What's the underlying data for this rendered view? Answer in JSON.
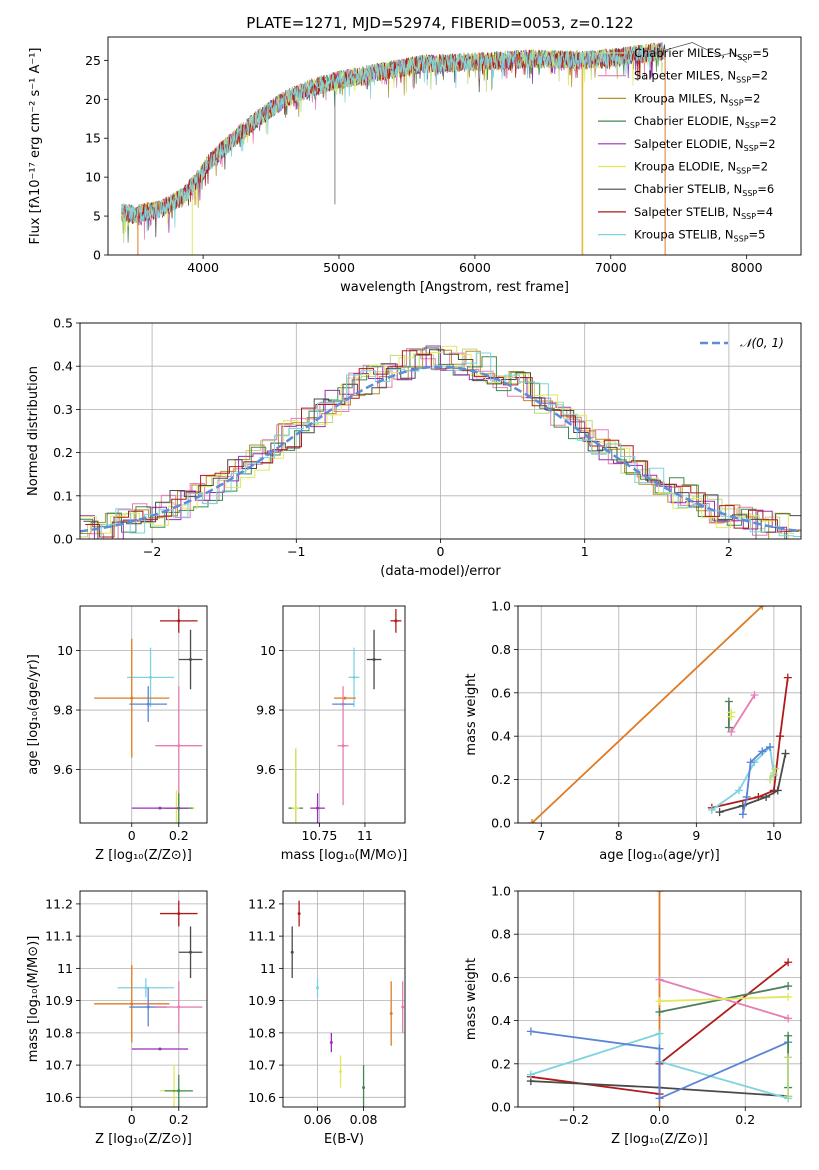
{
  "title": "PLATE=1271, MJD=52974, FIBERID=0053, z=0.122",
  "colors": {
    "Chabrier MILES": "#bcd982",
    "Salpeter MILES": "#e67eb4",
    "Kroupa MILES": "#b8902c",
    "Chabrier ELODIE": "#3f8a4c",
    "Salpeter ELODIE": "#9a2fb8",
    "Kroupa ELODIE": "#e3e85a",
    "Chabrier STELIB": "#4a4a4a",
    "Salpeter STELIB": "#b01a1a",
    "Kroupa STELIB": "#7dd3e0",
    "extra_orange": "#e07b24",
    "extra_blue": "#5b84d6",
    "dark_green": "#4f7f5a",
    "normal": "#5b8dd9"
  },
  "chart_data": [
    {
      "id": "spectrum",
      "type": "line",
      "xlabel": "wavelength [Angstrom, rest frame]",
      "ylabel": "Flux [fλ10⁻¹⁷ erg cm⁻² s⁻¹ A⁻¹]",
      "xlim": [
        3300,
        8400
      ],
      "ylim": [
        0,
        28
      ],
      "xticks": [
        4000,
        5000,
        6000,
        7000,
        8000
      ],
      "yticks": [
        0,
        5,
        10,
        15,
        20,
        25
      ],
      "legend": "right",
      "legend_entries": [
        {
          "name": "Chabrier MILES, N",
          "sub": "SSP",
          "tail": "=5"
        },
        {
          "name": "Salpeter MILES, N",
          "sub": "SSP",
          "tail": "=2"
        },
        {
          "name": "Kroupa MILES, N",
          "sub": "SSP",
          "tail": "=2"
        },
        {
          "name": "Chabrier ELODIE, N",
          "sub": "SSP",
          "tail": "=2"
        },
        {
          "name": "Salpeter ELODIE, N",
          "sub": "SSP",
          "tail": "=2"
        },
        {
          "name": "Kroupa ELODIE, N",
          "sub": "SSP",
          "tail": "=2"
        },
        {
          "name": "Chabrier STELIB, N",
          "sub": "SSP",
          "tail": "=6"
        },
        {
          "name": "Salpeter STELIB, N",
          "sub": "SSP",
          "tail": "=4"
        },
        {
          "name": "Kroupa STELIB, N",
          "sub": "SSP",
          "tail": "=5"
        }
      ],
      "continuum": [
        [
          3400,
          5.5
        ],
        [
          3500,
          5.2
        ],
        [
          3700,
          6
        ],
        [
          3850,
          7.5
        ],
        [
          3950,
          9.5
        ],
        [
          4050,
          12
        ],
        [
          4200,
          14.5
        ],
        [
          4400,
          17.5
        ],
        [
          4600,
          20
        ],
        [
          4800,
          21.5
        ],
        [
          5000,
          22.5
        ],
        [
          5300,
          23.5
        ],
        [
          5600,
          24.5
        ],
        [
          6000,
          24.8
        ],
        [
          6400,
          25.2
        ],
        [
          6800,
          25
        ],
        [
          7000,
          25.3
        ],
        [
          7200,
          25.8
        ],
        [
          7400,
          26.2
        ]
      ],
      "tail_stelib": [
        [
          7400,
          26.2
        ],
        [
          7600,
          26.8
        ],
        [
          7800,
          26
        ],
        [
          7900,
          25.5
        ],
        [
          8000,
          25
        ]
      ]
    },
    {
      "id": "residuals",
      "type": "histogram",
      "xlabel": "(data-model)/error",
      "ylabel": "Normed distribution",
      "xlim": [
        -2.5,
        2.5
      ],
      "ylim": [
        0,
        0.5
      ],
      "xticks": [
        -2,
        -1,
        0,
        1,
        2
      ],
      "xtick_labels": [
        "−2",
        "−1",
        "0",
        "1",
        "2"
      ],
      "yticks": [
        0,
        0.1,
        0.2,
        0.3,
        0.4,
        0.5
      ],
      "ytick_labels": [
        "0.0",
        "0.1",
        "0.2",
        "0.3",
        "0.4",
        "0.5"
      ],
      "bin_width": 0.1,
      "legend_label": "𝒩(0, 1)",
      "legend": "top-right"
    },
    {
      "id": "age_vs_Z",
      "type": "scatter",
      "xlabel": "Z [log₁₀(Z/Z⊙)]",
      "ylabel": "age  [log₁₀(age/yr)]",
      "xlim": [
        -0.22,
        0.32
      ],
      "ylim": [
        9.42,
        10.15
      ],
      "xticks": [
        0.0,
        0.2
      ],
      "yticks": [
        9.6,
        9.8,
        10.0
      ],
      "points": [
        {
          "c": "Salpeter STELIB",
          "x": 0.2,
          "y": 10.1,
          "xe": 0.08,
          "ye": 0.04
        },
        {
          "c": "Chabrier STELIB",
          "x": 0.25,
          "y": 9.97,
          "xe": 0.05,
          "ye": 0.1
        },
        {
          "c": "Kroupa STELIB",
          "x": 0.08,
          "y": 9.91,
          "xe": 0.1,
          "ye": 0.1
        },
        {
          "c": "extra_orange",
          "x": 0.0,
          "y": 9.84,
          "xe": 0.16,
          "ye": 0.2
        },
        {
          "c": "extra_blue",
          "x": 0.07,
          "y": 9.82,
          "xe": 0.08,
          "ye": 0.06
        },
        {
          "c": "Salpeter MILES",
          "x": 0.2,
          "y": 9.68,
          "xe": 0.1,
          "ye": 0.2
        },
        {
          "c": "Kroupa ELODIE",
          "x": 0.19,
          "y": 9.47,
          "xe": 0.08,
          "ye": 0.06
        },
        {
          "c": "Chabrier ELODIE",
          "x": 0.2,
          "y": 9.47,
          "xe": 0.06,
          "ye": 0.05
        },
        {
          "c": "Salpeter ELODIE",
          "x": 0.12,
          "y": 9.47,
          "xe": 0.12,
          "ye": 0.0
        }
      ]
    },
    {
      "id": "age_vs_mass",
      "type": "scatter",
      "xlabel": "mass [log₁₀(M/M⊙)]",
      "ylabel": "",
      "xlim": [
        10.55,
        11.22
      ],
      "ylim": [
        9.42,
        10.15
      ],
      "xticks": [
        10.75,
        11.0
      ],
      "yticks": [
        9.6,
        9.8,
        10.0
      ],
      "points": [
        {
          "c": "Salpeter STELIB",
          "x": 11.17,
          "y": 10.1,
          "xe": 0.03,
          "ye": 0.04
        },
        {
          "c": "Chabrier STELIB",
          "x": 11.05,
          "y": 9.97,
          "xe": 0.04,
          "ye": 0.1
        },
        {
          "c": "Kroupa STELIB",
          "x": 10.94,
          "y": 9.91,
          "xe": 0.03,
          "ye": 0.1
        },
        {
          "c": "extra_orange",
          "x": 10.89,
          "y": 9.84,
          "xe": 0.06,
          "ye": 0.0
        },
        {
          "c": "extra_blue",
          "x": 10.88,
          "y": 9.82,
          "xe": 0.06,
          "ye": 0.0
        },
        {
          "c": "Salpeter MILES",
          "x": 10.88,
          "y": 9.68,
          "xe": 0.03,
          "ye": 0.2
        },
        {
          "c": "Chabrier ELODIE",
          "x": 10.62,
          "y": 9.47,
          "xe": 0.04,
          "ye": 0.2
        },
        {
          "c": "Kroupa ELODIE",
          "x": 10.62,
          "y": 9.47,
          "xe": 0.02,
          "ye": 0.2
        },
        {
          "c": "Salpeter ELODIE",
          "x": 10.74,
          "y": 9.47,
          "xe": 0.04,
          "ye": 0.05
        }
      ]
    },
    {
      "id": "massweight_vs_age",
      "type": "line",
      "xlabel": "age  [log₁₀(age/yr)]",
      "ylabel": "mass weight",
      "xlim": [
        6.7,
        10.35
      ],
      "ylim": [
        0,
        1.0
      ],
      "xticks": [
        7,
        8,
        9,
        10
      ],
      "yticks": [
        0,
        0.2,
        0.4,
        0.6,
        0.8,
        1.0
      ],
      "ytick_labels": [
        "0.0",
        "0.2",
        "0.4",
        "0.6",
        "0.8",
        "1.0"
      ],
      "series": [
        {
          "c": "extra_orange",
          "pts": [
            [
              6.88,
              0.0
            ],
            [
              9.85,
              1.0
            ]
          ]
        },
        {
          "c": "Salpeter STELIB",
          "pts": [
            [
              9.2,
              0.07
            ],
            [
              9.8,
              0.12
            ],
            [
              10.0,
              0.15
            ],
            [
              10.08,
              0.4
            ],
            [
              10.18,
              0.67
            ]
          ]
        },
        {
          "c": "Chabrier STELIB",
          "pts": [
            [
              9.3,
              0.05
            ],
            [
              9.6,
              0.08
            ],
            [
              9.9,
              0.12
            ],
            [
              10.05,
              0.15
            ],
            [
              10.15,
              0.32
            ]
          ]
        },
        {
          "c": "Kroupa STELIB",
          "pts": [
            [
              9.2,
              0.06
            ],
            [
              9.55,
              0.15
            ],
            [
              9.75,
              0.28
            ],
            [
              9.95,
              0.35
            ],
            [
              10.0,
              0.22
            ]
          ]
        },
        {
          "c": "extra_blue",
          "pts": [
            [
              9.6,
              0.04
            ],
            [
              9.65,
              0.12
            ],
            [
              9.7,
              0.28
            ],
            [
              9.85,
              0.33
            ],
            [
              9.95,
              0.35
            ]
          ]
        },
        {
          "c": "Salpeter MILES",
          "pts": [
            [
              9.45,
              0.42
            ],
            [
              9.75,
              0.59
            ]
          ]
        },
        {
          "c": "dark_green",
          "pts": [
            [
              9.42,
              0.44
            ],
            [
              9.42,
              0.56
            ]
          ]
        },
        {
          "c": "Kroupa ELODIE",
          "pts": [
            [
              9.45,
              0.49
            ],
            [
              9.45,
              0.51
            ]
          ]
        },
        {
          "c": "Chabrier MILES",
          "pts": [
            [
              9.95,
              0.2
            ],
            [
              10.0,
              0.23
            ],
            [
              10.02,
              0.25
            ]
          ]
        }
      ]
    },
    {
      "id": "mass_vs_Z",
      "type": "scatter",
      "xlabel": "Z [log₁₀(Z/Z⊙)]",
      "ylabel": "mass [log₁₀(M/M⊙)]",
      "xlim": [
        -0.22,
        0.32
      ],
      "ylim": [
        10.57,
        11.24
      ],
      "xticks": [
        0.0,
        0.2
      ],
      "yticks": [
        10.6,
        10.7,
        10.8,
        10.9,
        11.0,
        11.1,
        11.2
      ],
      "points": [
        {
          "c": "Salpeter STELIB",
          "x": 0.2,
          "y": 11.17,
          "xe": 0.08,
          "ye": 0.04
        },
        {
          "c": "Chabrier STELIB",
          "x": 0.25,
          "y": 11.05,
          "xe": 0.05,
          "ye": 0.08
        },
        {
          "c": "Kroupa STELIB",
          "x": 0.06,
          "y": 10.94,
          "xe": 0.12,
          "ye": 0.03
        },
        {
          "c": "extra_orange",
          "x": 0.0,
          "y": 10.89,
          "xe": 0.16,
          "ye": 0.12
        },
        {
          "c": "extra_blue",
          "x": 0.07,
          "y": 10.88,
          "xe": 0.08,
          "ye": 0.06
        },
        {
          "c": "Salpeter MILES",
          "x": 0.2,
          "y": 10.88,
          "xe": 0.1,
          "ye": 0.08
        },
        {
          "c": "Salpeter ELODIE",
          "x": 0.12,
          "y": 10.75,
          "xe": 0.12,
          "ye": 0.0
        },
        {
          "c": "Kroupa ELODIE",
          "x": 0.18,
          "y": 10.62,
          "xe": 0.06,
          "ye": 0.08
        },
        {
          "c": "Chabrier ELODIE",
          "x": 0.2,
          "y": 10.62,
          "xe": 0.06,
          "ye": 0.05
        }
      ]
    },
    {
      "id": "mass_vs_EBV",
      "type": "scatter",
      "xlabel": "E(B-V)",
      "ylabel": "",
      "xlim": [
        0.045,
        0.098
      ],
      "ylim": [
        10.57,
        11.24
      ],
      "xticks": [
        0.06,
        0.08
      ],
      "yticks": [
        10.6,
        10.7,
        10.8,
        10.9,
        11.0,
        11.1,
        11.2
      ],
      "points": [
        {
          "c": "Salpeter STELIB",
          "x": 0.052,
          "y": 11.17,
          "xe": 0.0,
          "ye": 0.04
        },
        {
          "c": "Chabrier STELIB",
          "x": 0.049,
          "y": 11.05,
          "xe": 0.0,
          "ye": 0.08
        },
        {
          "c": "Kroupa STELIB",
          "x": 0.06,
          "y": 10.94,
          "xe": 0.0,
          "ye": 0.03
        },
        {
          "c": "extra_orange",
          "x": 0.092,
          "y": 10.86,
          "xe": 0.0,
          "ye": 0.1
        },
        {
          "c": "Salpeter MILES",
          "x": 0.097,
          "y": 10.88,
          "xe": 0.0,
          "ye": 0.08
        },
        {
          "c": "Salpeter ELODIE",
          "x": 0.066,
          "y": 10.77,
          "xe": 0.0,
          "ye": 0.03
        },
        {
          "c": "Kroupa ELODIE",
          "x": 0.07,
          "y": 10.68,
          "xe": 0.0,
          "ye": 0.05
        },
        {
          "c": "Chabrier ELODIE",
          "x": 0.08,
          "y": 10.63,
          "xe": 0.0,
          "ye": 0.07
        }
      ]
    },
    {
      "id": "massweight_vs_Z",
      "type": "line",
      "xlabel": "Z [log₁₀(Z/Z⊙)]",
      "ylabel": "mass weight",
      "xlim": [
        -0.33,
        0.33
      ],
      "ylim": [
        0,
        1.0
      ],
      "xticks": [
        -0.2,
        0.0,
        0.2
      ],
      "xtick_labels": [
        "−0.2",
        "0.0",
        "0.2"
      ],
      "yticks": [
        0,
        0.2,
        0.4,
        0.6,
        0.8,
        1.0
      ],
      "ytick_labels": [
        "0.0",
        "0.2",
        "0.4",
        "0.6",
        "0.8",
        "1.0"
      ],
      "series": [
        {
          "c": "extra_orange",
          "pts": [
            [
              0.0,
              0.0
            ],
            [
              0.0,
              1.0
            ]
          ]
        },
        {
          "c": "Salpeter STELIB",
          "pts": [
            [
              -0.3,
              0.14
            ],
            [
              0.0,
              0.06
            ],
            [
              0.0,
              0.2
            ],
            [
              0.3,
              0.67
            ]
          ]
        },
        {
          "c": "Chabrier STELIB",
          "pts": [
            [
              -0.3,
              0.12
            ],
            [
              0.0,
              0.09
            ],
            [
              0.3,
              0.05
            ]
          ]
        },
        {
          "c": "Kroupa STELIB",
          "pts": [
            [
              -0.3,
              0.15
            ],
            [
              0.0,
              0.34
            ],
            [
              0.0,
              0.21
            ],
            [
              0.3,
              0.04
            ]
          ]
        },
        {
          "c": "extra_blue",
          "pts": [
            [
              -0.3,
              0.35
            ],
            [
              0.0,
              0.27
            ],
            [
              0.0,
              0.04
            ],
            [
              0.3,
              0.3
            ]
          ]
        },
        {
          "c": "Salpeter MILES",
          "pts": [
            [
              0.0,
              0.59
            ],
            [
              0.3,
              0.41
            ]
          ]
        },
        {
          "c": "dark_green",
          "pts": [
            [
              0.0,
              0.44
            ],
            [
              0.3,
              0.56
            ]
          ]
        },
        {
          "c": "Kroupa ELODIE",
          "pts": [
            [
              0.0,
              0.49
            ],
            [
              0.3,
              0.51
            ]
          ]
        },
        {
          "c": "Chabrier ELODIE",
          "pts": [
            [
              0.3,
              0.09
            ],
            [
              0.3,
              0.33
            ]
          ]
        },
        {
          "c": "Chabrier MILES",
          "pts": [
            [
              0.3,
              0.23
            ],
            [
              0.3,
              0.05
            ]
          ]
        }
      ]
    }
  ]
}
